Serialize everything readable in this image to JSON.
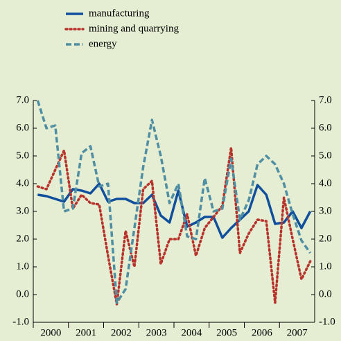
{
  "chart_data": {
    "type": "line",
    "x": [
      2000.125,
      2000.375,
      2000.625,
      2000.875,
      2001.125,
      2001.375,
      2001.625,
      2001.875,
      2002.125,
      2002.375,
      2002.625,
      2002.875,
      2003.125,
      2003.375,
      2003.625,
      2003.875,
      2004.125,
      2004.375,
      2004.625,
      2004.875,
      2005.125,
      2005.375,
      2005.625,
      2005.875,
      2006.125,
      2006.375,
      2006.625,
      2006.875,
      2007.125,
      2007.375,
      2007.625,
      2007.875
    ],
    "xlim": [
      2000,
      2008
    ],
    "xticks": [
      {
        "value": 2000.5,
        "label": "2000"
      },
      {
        "value": 2001.5,
        "label": "2001"
      },
      {
        "value": 2002.5,
        "label": "2002"
      },
      {
        "value": 2003.5,
        "label": "2003"
      },
      {
        "value": 2004.5,
        "label": "2004"
      },
      {
        "value": 2005.5,
        "label": "2005"
      },
      {
        "value": 2006.5,
        "label": "2006"
      },
      {
        "value": 2007.5,
        "label": "2007"
      }
    ],
    "ylim": [
      -1,
      7
    ],
    "yticks": [
      {
        "value": -1,
        "label": "-1.0"
      },
      {
        "value": 0,
        "label": "0.0"
      },
      {
        "value": 1,
        "label": "1.0"
      },
      {
        "value": 2,
        "label": "2.0"
      },
      {
        "value": 3,
        "label": "3.0"
      },
      {
        "value": 4,
        "label": "4.0"
      },
      {
        "value": 5,
        "label": "5.0"
      },
      {
        "value": 6,
        "label": "6.0"
      },
      {
        "value": 7,
        "label": "7.0"
      }
    ],
    "series": [
      {
        "name": "manufacturing",
        "color": "#0f4f9e",
        "style": "solid",
        "values": [
          3.6,
          3.55,
          3.45,
          3.35,
          3.8,
          3.75,
          3.65,
          4.0,
          3.35,
          3.45,
          3.45,
          3.3,
          3.3,
          3.6,
          2.85,
          2.6,
          3.75,
          2.45,
          2.6,
          2.8,
          2.8,
          2.05,
          2.4,
          2.7,
          3.0,
          3.95,
          3.6,
          2.55,
          2.6,
          3.0,
          2.4,
          3.0
        ]
      },
      {
        "name": "mining and quarrying",
        "color": "#b8322b",
        "style": "dotted",
        "values": [
          3.9,
          3.8,
          4.5,
          5.2,
          3.1,
          3.6,
          3.3,
          3.25,
          1.4,
          -0.35,
          2.3,
          1.0,
          3.8,
          4.1,
          1.1,
          2.0,
          2.0,
          2.9,
          1.4,
          2.4,
          2.8,
          3.2,
          5.3,
          1.5,
          2.2,
          2.7,
          2.65,
          -0.3,
          3.5,
          2.0,
          0.55,
          1.2
        ]
      },
      {
        "name": "energy",
        "color": "#4f8ea3",
        "style": "dashed",
        "values": [
          7.0,
          6.0,
          6.1,
          3.0,
          3.1,
          5.1,
          5.35,
          3.9,
          4.0,
          -0.3,
          0.2,
          2.4,
          4.6,
          6.3,
          5.0,
          3.3,
          4.0,
          2.1,
          2.0,
          4.2,
          3.0,
          3.1,
          4.9,
          2.7,
          3.4,
          4.7,
          5.0,
          4.7,
          4.0,
          2.9,
          1.95,
          1.5
        ]
      }
    ]
  }
}
